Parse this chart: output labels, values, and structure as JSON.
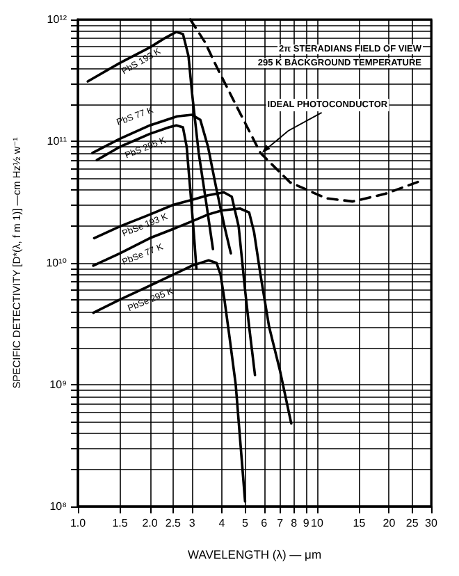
{
  "chart_data": {
    "type": "line",
    "xlabel": "WAVELENGTH (λ) — μm",
    "ylabel": "SPECIFIC DETECTIVITY [D*(λ, f m 1)] —cm Hz½ w⁻¹",
    "log": "xy",
    "grid": true,
    "legend": false,
    "marker": "none",
    "line_style": "solid",
    "xlim": [
      1,
      30
    ],
    "xticks": [
      {
        "value": 1,
        "label": "1.0"
      },
      {
        "value": 1.5,
        "label": "1.5"
      },
      {
        "value": 2,
        "label": "2.0"
      },
      {
        "value": 2.5,
        "label": "2.5"
      },
      3,
      4,
      5,
      6,
      7,
      8,
      9,
      10,
      15,
      20,
      25,
      30
    ],
    "ylim": [
      100000000.0,
      1000000000000.0
    ],
    "yticks": [
      {
        "value": 100000000.0,
        "label": "10⁸"
      },
      {
        "value": 200000000.0,
        "label": null
      },
      {
        "value": 300000000.0,
        "label": null
      },
      {
        "value": 400000000.0,
        "label": null
      },
      {
        "value": 500000000.0,
        "label": null
      },
      {
        "value": 600000000.0,
        "label": null
      },
      {
        "value": 700000000.0,
        "label": null
      },
      {
        "value": 800000000.0,
        "label": null
      },
      {
        "value": 900000000.0,
        "label": null
      },
      {
        "value": 1000000000.0,
        "label": "10⁹"
      },
      {
        "value": 2000000000.0,
        "label": null
      },
      {
        "value": 3000000000.0,
        "label": null
      },
      {
        "value": 4000000000.0,
        "label": null
      },
      {
        "value": 5000000000.0,
        "label": null
      },
      {
        "value": 6000000000.0,
        "label": null
      },
      {
        "value": 7000000000.0,
        "label": null
      },
      {
        "value": 8000000000.0,
        "label": null
      },
      {
        "value": 9000000000.0,
        "label": null
      },
      {
        "value": 10000000000.0,
        "label": "10¹⁰"
      },
      {
        "value": 20000000000.0,
        "label": null
      },
      {
        "value": 30000000000.0,
        "label": null
      },
      {
        "value": 40000000000.0,
        "label": null
      },
      {
        "value": 50000000000.0,
        "label": null
      },
      {
        "value": 60000000000.0,
        "label": null
      },
      {
        "value": 70000000000.0,
        "label": null
      },
      {
        "value": 80000000000.0,
        "label": null
      },
      {
        "value": 90000000000.0,
        "label": null
      },
      {
        "value": 100000000000.0,
        "label": "10¹¹"
      },
      {
        "value": 200000000000.0,
        "label": null
      },
      {
        "value": 300000000000.0,
        "label": null
      },
      {
        "value": 400000000000.0,
        "label": null
      },
      {
        "value": 500000000000.0,
        "label": null
      },
      {
        "value": 600000000000.0,
        "label": null
      },
      {
        "value": 700000000000.0,
        "label": null
      },
      {
        "value": 800000000000.0,
        "label": null
      },
      {
        "value": 900000000000.0,
        "label": null
      },
      {
        "value": 1000000000000.0,
        "label": "10¹²"
      }
    ],
    "series": [
      {
        "name": "PbS 193 K",
        "color": "#000000",
        "x": [
          1.1,
          1.5,
          2.0,
          2.3,
          2.58,
          2.75,
          2.9,
          3.0,
          3.2,
          3.45,
          3.67
        ],
        "values": [
          310000000000.0,
          440000000000.0,
          590000000000.0,
          700000000000.0,
          790000000000.0,
          760000000000.0,
          500000000000.0,
          250000000000.0,
          80000000000.0,
          30000000000.0,
          13000000000.0
        ]
      },
      {
        "name": "PbS 77 K",
        "color": "#000000",
        "x": [
          1.15,
          1.5,
          2.0,
          2.6,
          3.0,
          3.25,
          3.5,
          3.8,
          4.1,
          4.36
        ],
        "values": [
          80000000000.0,
          105000000000.0,
          135000000000.0,
          160000000000.0,
          165000000000.0,
          150000000000.0,
          90000000000.0,
          40000000000.0,
          20000000000.0,
          12000000000.0
        ]
      },
      {
        "name": "PbS 295 K",
        "color": "#000000",
        "x": [
          1.2,
          1.5,
          2.0,
          2.4,
          2.58,
          2.75,
          2.85,
          2.95,
          3.05,
          3.13
        ],
        "values": [
          70000000000.0,
          90000000000.0,
          115000000000.0,
          130000000000.0,
          135000000000.0,
          130000000000.0,
          90000000000.0,
          40000000000.0,
          18000000000.0,
          9000000000.0
        ]
      },
      {
        "name": "PbSe 193 K",
        "color": "#000000",
        "x": [
          1.17,
          1.5,
          2.0,
          2.5,
          3.0,
          3.5,
          4.08,
          4.4,
          4.7,
          5.0,
          5.2,
          5.5
        ],
        "values": [
          16000000000.0,
          20000000000.0,
          25000000000.0,
          30000000000.0,
          33000000000.0,
          36000000000.0,
          38000000000.0,
          35000000000.0,
          20000000000.0,
          6000000000.0,
          3000000000.0,
          1200000000.0
        ]
      },
      {
        "name": "PbSe 77 K",
        "color": "#000000",
        "x": [
          1.16,
          1.5,
          2.0,
          2.5,
          3.0,
          3.5,
          4.0,
          4.76,
          5.2,
          5.45,
          5.8,
          6.3,
          7.0,
          7.8
        ],
        "values": [
          9500000000.0,
          12000000000.0,
          16000000000.0,
          19000000000.0,
          22000000000.0,
          25000000000.0,
          27000000000.0,
          28000000000.0,
          26000000000.0,
          18000000000.0,
          8000000000.0,
          3000000000.0,
          1300000000.0,
          480000000.0
        ]
      },
      {
        "name": "PbSe 295 K",
        "color": "#000000",
        "x": [
          1.16,
          1.5,
          2.0,
          2.5,
          3.0,
          3.52,
          3.8,
          3.95,
          4.1,
          4.3,
          4.57,
          4.8,
          5.0
        ],
        "values": [
          3900000000.0,
          5000000000.0,
          6500000000.0,
          8000000000.0,
          9500000000.0,
          10500000000.0,
          10000000000.0,
          8000000000.0,
          5000000000.0,
          2500000000.0,
          1000000000.0,
          300000000.0,
          110000000.0
        ]
      },
      {
        "color": "#000000",
        "line_style": "dashed",
        "x": [
          2.95,
          3.4,
          3.8,
          4.57,
          5.8,
          7.7,
          10.9,
          14.1,
          19.3,
          27.8
        ],
        "values": [
          1000000000000.0,
          650000000000.0,
          410000000000.0,
          200000000000.0,
          80000000000.0,
          46000000000.0,
          34000000000.0,
          32000000000.0,
          37000000000.0,
          48000000000.0
        ]
      }
    ],
    "annotations": [
      "2π STERADIANS FIELD OF VIEW",
      "295 K BACKGROUND TEMPERATURE",
      {
        "text": "IDEAL PHOTOCONDUCTOR",
        "x": 5.8,
        "y": 80000000000.0
      }
    ]
  }
}
